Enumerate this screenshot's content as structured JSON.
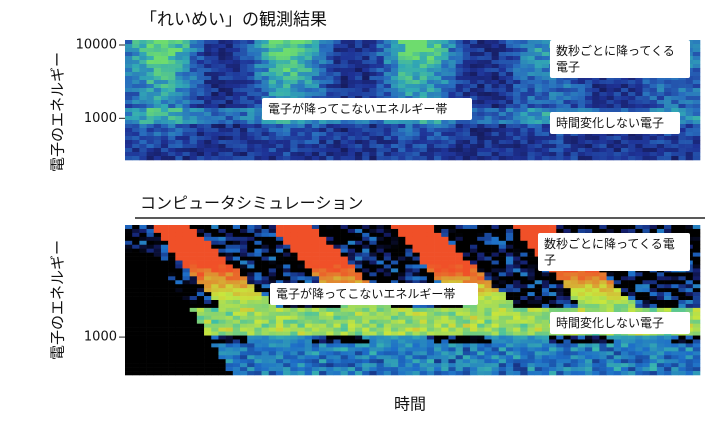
{
  "chart_data": [
    {
      "type": "heatmap",
      "title": "「れいめい」の観測結果",
      "ylabel": "電子のエネルギー",
      "yscale": "log",
      "ylim": [
        270,
        11700
      ],
      "yticks": [
        10000,
        1000
      ],
      "annotations": [
        "数秒ごとに降ってくる電子",
        "電子が降ってこないエネルギー帯",
        "時間変化しない電子"
      ]
    },
    {
      "type": "heatmap",
      "title": "コンピュータシミュレーション",
      "ylabel": "電子のエネルギー",
      "xlabel": "時間",
      "yscale": "log",
      "ylim": [
        420,
        13000
      ],
      "yticks": [
        1000
      ],
      "annotations": [
        "数秒ごとに降ってくる電子",
        "電子が降ってこないエネルギー帯",
        "時間変化しない電子"
      ]
    }
  ]
}
